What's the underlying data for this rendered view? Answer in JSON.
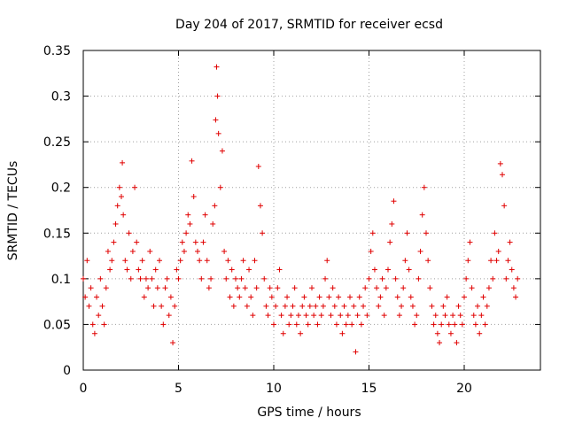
{
  "chart_data": {
    "type": "scatter",
    "title": "Day 204 of 2017, SRMTID for receiver ecsd",
    "xlabel": "GPS time / hours",
    "ylabel": "SRMTID / TECUs",
    "xlim": [
      0,
      24
    ],
    "ylim": [
      0,
      0.35
    ],
    "xticks": [
      0,
      5,
      10,
      15,
      20
    ],
    "xtick_labels": [
      "0",
      "5",
      "10",
      "15",
      "20"
    ],
    "yticks": [
      0,
      0.05,
      0.1,
      0.15,
      0.2,
      0.25,
      0.3,
      0.35
    ],
    "ytick_labels": [
      "0",
      "0.05",
      "0.1",
      "0.15",
      "0.2",
      "0.25",
      "0.3",
      "0.35"
    ],
    "grid": true,
    "marker": "+",
    "marker_color": "#e00000",
    "series": [
      {
        "name": "SRMTID",
        "x": [
          0.0,
          0.1,
          0.2,
          0.3,
          0.4,
          0.5,
          0.6,
          0.7,
          0.8,
          0.9,
          1.0,
          1.1,
          1.2,
          1.3,
          1.4,
          1.5,
          1.6,
          1.7,
          1.8,
          1.9,
          2.0,
          2.05,
          2.1,
          2.2,
          2.3,
          2.4,
          2.5,
          2.6,
          2.7,
          2.8,
          2.9,
          3.0,
          3.1,
          3.2,
          3.3,
          3.4,
          3.5,
          3.6,
          3.7,
          3.8,
          3.9,
          4.0,
          4.1,
          4.2,
          4.3,
          4.4,
          4.5,
          4.6,
          4.7,
          4.8,
          4.9,
          5.0,
          5.1,
          5.2,
          5.3,
          5.4,
          5.5,
          5.6,
          5.7,
          5.8,
          5.9,
          6.0,
          6.1,
          6.2,
          6.3,
          6.4,
          6.5,
          6.6,
          6.7,
          6.8,
          6.9,
          6.95,
          7.0,
          7.05,
          7.1,
          7.2,
          7.3,
          7.4,
          7.5,
          7.6,
          7.7,
          7.8,
          7.9,
          8.0,
          8.1,
          8.2,
          8.3,
          8.4,
          8.5,
          8.6,
          8.7,
          8.8,
          8.9,
          9.0,
          9.1,
          9.2,
          9.3,
          9.4,
          9.5,
          9.6,
          9.7,
          9.8,
          9.9,
          10.0,
          10.1,
          10.2,
          10.3,
          10.4,
          10.5,
          10.6,
          10.7,
          10.8,
          10.9,
          11.0,
          11.1,
          11.2,
          11.3,
          11.4,
          11.5,
          11.6,
          11.7,
          11.8,
          11.9,
          12.0,
          12.1,
          12.2,
          12.3,
          12.4,
          12.5,
          12.6,
          12.7,
          12.8,
          12.9,
          13.0,
          13.1,
          13.2,
          13.3,
          13.4,
          13.5,
          13.6,
          13.7,
          13.8,
          13.9,
          14.0,
          14.1,
          14.2,
          14.3,
          14.4,
          14.5,
          14.6,
          14.7,
          14.8,
          14.9,
          15.0,
          15.1,
          15.2,
          15.3,
          15.4,
          15.5,
          15.6,
          15.7,
          15.8,
          15.9,
          16.0,
          16.1,
          16.2,
          16.3,
          16.4,
          16.5,
          16.6,
          16.7,
          16.8,
          16.9,
          17.0,
          17.1,
          17.2,
          17.3,
          17.4,
          17.5,
          17.6,
          17.7,
          17.8,
          17.9,
          18.0,
          18.1,
          18.2,
          18.3,
          18.4,
          18.5,
          18.6,
          18.7,
          18.8,
          18.9,
          19.0,
          19.1,
          19.2,
          19.3,
          19.4,
          19.5,
          19.6,
          19.7,
          19.8,
          19.9,
          20.0,
          20.1,
          20.2,
          20.3,
          20.4,
          20.5,
          20.6,
          20.7,
          20.8,
          20.9,
          21.0,
          21.1,
          21.2,
          21.3,
          21.4,
          21.5,
          21.6,
          21.7,
          21.8,
          21.9,
          22.0,
          22.1,
          22.2,
          22.3,
          22.4,
          22.5,
          22.6,
          22.7,
          22.8
        ],
        "y": [
          0.1,
          0.08,
          0.12,
          0.07,
          0.09,
          0.05,
          0.04,
          0.08,
          0.06,
          0.1,
          0.07,
          0.05,
          0.09,
          0.13,
          0.11,
          0.12,
          0.14,
          0.16,
          0.18,
          0.2,
          0.19,
          0.227,
          0.17,
          0.12,
          0.11,
          0.15,
          0.1,
          0.13,
          0.2,
          0.14,
          0.11,
          0.1,
          0.12,
          0.08,
          0.1,
          0.09,
          0.13,
          0.1,
          0.07,
          0.11,
          0.09,
          0.12,
          0.07,
          0.05,
          0.09,
          0.1,
          0.06,
          0.08,
          0.03,
          0.07,
          0.11,
          0.1,
          0.12,
          0.14,
          0.13,
          0.15,
          0.17,
          0.16,
          0.229,
          0.19,
          0.14,
          0.13,
          0.12,
          0.1,
          0.14,
          0.17,
          0.12,
          0.09,
          0.1,
          0.16,
          0.18,
          0.274,
          0.332,
          0.3,
          0.259,
          0.2,
          0.24,
          0.13,
          0.1,
          0.12,
          0.08,
          0.11,
          0.07,
          0.1,
          0.09,
          0.08,
          0.1,
          0.12,
          0.09,
          0.07,
          0.11,
          0.08,
          0.06,
          0.12,
          0.09,
          0.223,
          0.18,
          0.15,
          0.1,
          0.07,
          0.06,
          0.09,
          0.08,
          0.05,
          0.07,
          0.09,
          0.11,
          0.06,
          0.04,
          0.07,
          0.08,
          0.05,
          0.06,
          0.07,
          0.09,
          0.05,
          0.06,
          0.04,
          0.07,
          0.08,
          0.06,
          0.05,
          0.07,
          0.09,
          0.06,
          0.07,
          0.05,
          0.08,
          0.06,
          0.07,
          0.1,
          0.12,
          0.08,
          0.06,
          0.09,
          0.07,
          0.05,
          0.08,
          0.06,
          0.04,
          0.07,
          0.05,
          0.06,
          0.08,
          0.05,
          0.07,
          0.02,
          0.06,
          0.08,
          0.05,
          0.07,
          0.09,
          0.06,
          0.1,
          0.13,
          0.15,
          0.11,
          0.09,
          0.07,
          0.08,
          0.1,
          0.06,
          0.09,
          0.11,
          0.14,
          0.16,
          0.185,
          0.1,
          0.08,
          0.06,
          0.07,
          0.09,
          0.12,
          0.15,
          0.11,
          0.08,
          0.07,
          0.05,
          0.06,
          0.1,
          0.13,
          0.17,
          0.2,
          0.15,
          0.12,
          0.09,
          0.07,
          0.05,
          0.06,
          0.04,
          0.03,
          0.05,
          0.07,
          0.06,
          0.08,
          0.05,
          0.04,
          0.06,
          0.05,
          0.03,
          0.07,
          0.06,
          0.05,
          0.08,
          0.1,
          0.12,
          0.14,
          0.09,
          0.06,
          0.05,
          0.07,
          0.04,
          0.06,
          0.08,
          0.05,
          0.07,
          0.09,
          0.12,
          0.1,
          0.15,
          0.12,
          0.13,
          0.226,
          0.214,
          0.18,
          0.1,
          0.12,
          0.14,
          0.11,
          0.09,
          0.08,
          0.1
        ]
      }
    ]
  }
}
